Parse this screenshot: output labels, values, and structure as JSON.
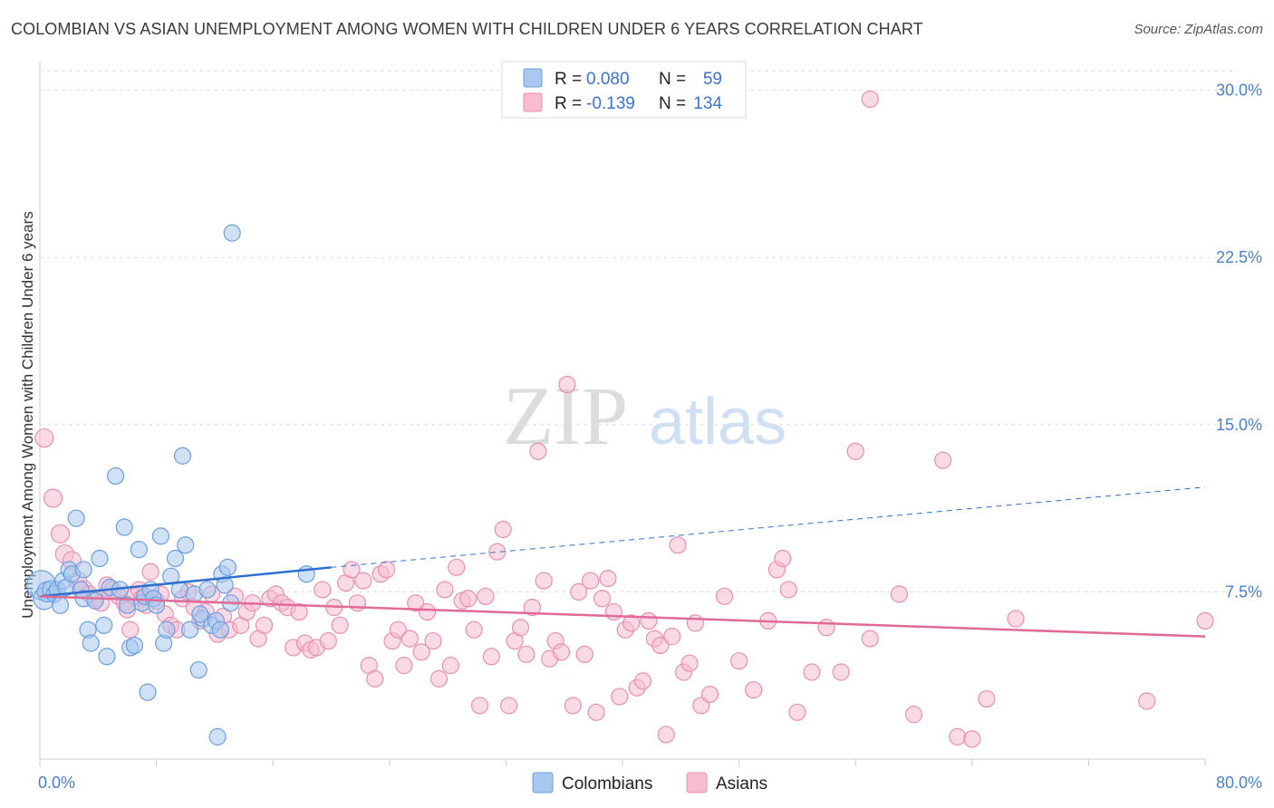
{
  "title": "COLOMBIAN VS ASIAN UNEMPLOYMENT AMONG WOMEN WITH CHILDREN UNDER 6 YEARS CORRELATION CHART",
  "source": "Source: ZipAtlas.com",
  "watermark": {
    "zip": "ZIP",
    "atlas": "atlas"
  },
  "colors": {
    "colombians_fill": "#a9c8ef",
    "colombians_stroke": "#6a9ee0",
    "colombians_line": "#2f6fd0",
    "asians_fill": "#f6bcd0",
    "asians_stroke": "#e98fb0",
    "asians_line": "#e06a98",
    "grid": "#dddddd",
    "tick_text": "#4a7fd0"
  },
  "legend": {
    "rows": [
      {
        "r_label": "R =",
        "r_value": "0.080",
        "n_label": "N =",
        "n_value": "59"
      },
      {
        "r_label": "R =",
        "r_value": "-0.139",
        "n_label": "N =",
        "n_value": "134"
      }
    ]
  },
  "chart_data": {
    "type": "scatter",
    "xlabel": "",
    "ylabel": "Unemployment Among Women with Children Under 6 years",
    "xlim": [
      0,
      80
    ],
    "ylim": [
      0,
      31
    ],
    "x_tick_labels": [
      "0.0%",
      "80.0%"
    ],
    "y_ticks": [
      7.5,
      15.0,
      22.5,
      30.0
    ],
    "y_tick_labels": [
      "7.5%",
      "15.0%",
      "22.5%",
      "30.0%"
    ],
    "grid": "horizontal dashed",
    "legend_position": "top-center",
    "series": [
      {
        "name": "Colombians",
        "trend": {
          "x0": 0,
          "y0": 7.3,
          "x1": 20,
          "y1": 8.6,
          "dash_to_x": 80,
          "dash_to_y": 12.2
        },
        "points": [
          [
            0.1,
            7.8,
            16
          ],
          [
            0.3,
            7.2,
            12
          ],
          [
            0.5,
            7.5,
            11
          ],
          [
            0.8,
            7.6,
            10
          ],
          [
            1.0,
            7.4,
            9
          ],
          [
            1.2,
            7.6,
            9
          ],
          [
            1.4,
            6.9,
            9
          ],
          [
            1.6,
            8.0,
            9
          ],
          [
            1.8,
            7.7,
            9
          ],
          [
            2.0,
            8.5,
            9
          ],
          [
            2.2,
            8.3,
            9
          ],
          [
            2.5,
            10.8,
            9
          ],
          [
            2.8,
            7.6,
            9
          ],
          [
            3.0,
            7.2,
            9
          ],
          [
            3.3,
            5.8,
            9
          ],
          [
            3.5,
            5.2,
            9
          ],
          [
            3.8,
            7.1,
            9
          ],
          [
            4.1,
            9.0,
            9
          ],
          [
            4.4,
            6.0,
            9
          ],
          [
            4.6,
            4.6,
            9
          ],
          [
            4.8,
            7.7,
            9
          ],
          [
            5.2,
            12.7,
            9
          ],
          [
            5.5,
            7.6,
            9
          ],
          [
            5.8,
            10.4,
            9
          ],
          [
            6.0,
            6.9,
            9
          ],
          [
            6.2,
            5.0,
            9
          ],
          [
            6.5,
            5.1,
            9
          ],
          [
            6.8,
            9.4,
            9
          ],
          [
            7.0,
            7.0,
            9
          ],
          [
            7.2,
            7.3,
            9
          ],
          [
            7.4,
            3.0,
            9
          ],
          [
            7.6,
            7.6,
            9
          ],
          [
            7.8,
            7.2,
            9
          ],
          [
            8.0,
            6.9,
            9
          ],
          [
            8.3,
            10.0,
            9
          ],
          [
            8.5,
            5.2,
            9
          ],
          [
            8.7,
            5.8,
            9
          ],
          [
            9.0,
            8.2,
            9
          ],
          [
            9.3,
            9.0,
            9
          ],
          [
            9.6,
            7.6,
            9
          ],
          [
            10.0,
            9.6,
            9
          ],
          [
            10.3,
            5.8,
            9
          ],
          [
            10.6,
            7.4,
            9
          ],
          [
            10.9,
            4.0,
            9
          ],
          [
            11.2,
            6.3,
            9
          ],
          [
            11.5,
            7.6,
            9
          ],
          [
            11.8,
            6.0,
            9
          ],
          [
            12.1,
            6.2,
            9
          ],
          [
            12.4,
            5.8,
            9
          ],
          [
            11.0,
            6.5,
            9
          ],
          [
            9.8,
            13.6,
            9
          ],
          [
            12.5,
            8.3,
            9
          ],
          [
            12.7,
            7.8,
            9
          ],
          [
            12.9,
            8.6,
            9
          ],
          [
            13.1,
            7.0,
            9
          ],
          [
            13.2,
            23.6,
            9
          ],
          [
            18.3,
            8.3,
            9
          ],
          [
            12.2,
            1.0,
            9
          ],
          [
            3.0,
            8.5,
            9
          ]
        ]
      },
      {
        "name": "Asians",
        "trend": {
          "x0": 0,
          "y0": 7.3,
          "x1": 80,
          "y1": 5.5
        },
        "points": [
          [
            0.3,
            14.4,
            10
          ],
          [
            0.9,
            11.7,
            10
          ],
          [
            1.4,
            10.1,
            10
          ],
          [
            1.7,
            9.2,
            10
          ],
          [
            2.2,
            8.9,
            10
          ],
          [
            2.6,
            8.0,
            10
          ],
          [
            3.0,
            7.6,
            10
          ],
          [
            3.4,
            7.4,
            9
          ],
          [
            3.8,
            7.2,
            9
          ],
          [
            4.2,
            7.0,
            9
          ],
          [
            4.6,
            7.8,
            9
          ],
          [
            5.0,
            7.6,
            9
          ],
          [
            5.4,
            7.3,
            9
          ],
          [
            5.8,
            7.0,
            9
          ],
          [
            6.0,
            6.7,
            9
          ],
          [
            6.2,
            5.8,
            9
          ],
          [
            6.5,
            7.3,
            9
          ],
          [
            6.8,
            7.6,
            9
          ],
          [
            7.0,
            7.2,
            9
          ],
          [
            7.3,
            6.9,
            9
          ],
          [
            7.6,
            8.4,
            9
          ],
          [
            8.0,
            7.1,
            9
          ],
          [
            8.3,
            7.4,
            9
          ],
          [
            8.6,
            6.5,
            9
          ],
          [
            9.0,
            6.0,
            9
          ],
          [
            9.4,
            5.8,
            9
          ],
          [
            9.8,
            7.2,
            9
          ],
          [
            10.2,
            7.5,
            9
          ],
          [
            10.6,
            6.8,
            9
          ],
          [
            11.0,
            6.2,
            9
          ],
          [
            11.4,
            6.6,
            9
          ],
          [
            11.8,
            7.4,
            9
          ],
          [
            12.2,
            5.6,
            9
          ],
          [
            12.6,
            6.4,
            9
          ],
          [
            13.0,
            5.8,
            9
          ],
          [
            13.4,
            7.3,
            9
          ],
          [
            13.8,
            6.0,
            9
          ],
          [
            14.2,
            6.6,
            9
          ],
          [
            14.6,
            7.0,
            9
          ],
          [
            15.0,
            5.4,
            9
          ],
          [
            15.4,
            6.0,
            9
          ],
          [
            15.8,
            7.2,
            9
          ],
          [
            16.2,
            7.4,
            9
          ],
          [
            16.6,
            7.0,
            9
          ],
          [
            17.0,
            6.8,
            9
          ],
          [
            17.4,
            5.0,
            9
          ],
          [
            17.8,
            6.6,
            9
          ],
          [
            18.2,
            5.2,
            9
          ],
          [
            18.6,
            4.9,
            9
          ],
          [
            19.0,
            5.0,
            9
          ],
          [
            19.4,
            7.6,
            9
          ],
          [
            19.8,
            5.3,
            9
          ],
          [
            20.2,
            6.8,
            9
          ],
          [
            20.6,
            6.0,
            9
          ],
          [
            21.0,
            7.9,
            9
          ],
          [
            21.4,
            8.5,
            9
          ],
          [
            21.8,
            7.0,
            9
          ],
          [
            22.2,
            8.0,
            9
          ],
          [
            22.6,
            4.2,
            9
          ],
          [
            23.0,
            3.6,
            9
          ],
          [
            23.4,
            8.3,
            9
          ],
          [
            23.8,
            8.5,
            9
          ],
          [
            24.2,
            5.3,
            9
          ],
          [
            24.6,
            5.8,
            9
          ],
          [
            25.0,
            4.2,
            9
          ],
          [
            25.4,
            5.4,
            9
          ],
          [
            25.8,
            7.0,
            9
          ],
          [
            26.2,
            4.8,
            9
          ],
          [
            26.6,
            6.6,
            9
          ],
          [
            27.0,
            5.3,
            9
          ],
          [
            27.4,
            3.6,
            9
          ],
          [
            27.8,
            7.6,
            9
          ],
          [
            28.2,
            4.2,
            9
          ],
          [
            28.6,
            8.6,
            9
          ],
          [
            29.0,
            7.1,
            9
          ],
          [
            29.4,
            7.2,
            9
          ],
          [
            29.8,
            5.8,
            9
          ],
          [
            30.2,
            2.4,
            9
          ],
          [
            30.6,
            7.3,
            9
          ],
          [
            31.0,
            4.6,
            9
          ],
          [
            31.4,
            9.3,
            9
          ],
          [
            31.8,
            10.3,
            9
          ],
          [
            32.2,
            2.4,
            9
          ],
          [
            32.6,
            5.3,
            9
          ],
          [
            33.0,
            5.9,
            9
          ],
          [
            33.4,
            4.7,
            9
          ],
          [
            33.8,
            6.8,
            9
          ],
          [
            34.2,
            13.8,
            9
          ],
          [
            34.6,
            8.0,
            9
          ],
          [
            35.0,
            4.5,
            9
          ],
          [
            35.4,
            5.3,
            9
          ],
          [
            35.8,
            4.8,
            9
          ],
          [
            36.2,
            16.8,
            9
          ],
          [
            36.6,
            2.4,
            9
          ],
          [
            37.0,
            7.5,
            9
          ],
          [
            37.4,
            4.7,
            9
          ],
          [
            37.8,
            8.0,
            9
          ],
          [
            38.2,
            2.1,
            9
          ],
          [
            38.6,
            7.2,
            9
          ],
          [
            39.0,
            8.1,
            9
          ],
          [
            39.4,
            6.6,
            9
          ],
          [
            39.8,
            2.8,
            9
          ],
          [
            40.2,
            5.8,
            9
          ],
          [
            40.6,
            6.1,
            9
          ],
          [
            41.0,
            3.2,
            9
          ],
          [
            41.4,
            3.5,
            9
          ],
          [
            41.8,
            6.2,
            9
          ],
          [
            42.2,
            5.4,
            9
          ],
          [
            42.6,
            5.1,
            9
          ],
          [
            43.0,
            1.1,
            9
          ],
          [
            43.4,
            5.5,
            9
          ],
          [
            43.8,
            9.6,
            9
          ],
          [
            44.2,
            3.9,
            9
          ],
          [
            44.6,
            4.3,
            9
          ],
          [
            45.0,
            6.1,
            9
          ],
          [
            45.4,
            2.4,
            9
          ],
          [
            46.0,
            2.9,
            9
          ],
          [
            47.0,
            7.3,
            9
          ],
          [
            48.0,
            4.4,
            9
          ],
          [
            49.0,
            3.1,
            9
          ],
          [
            50.0,
            6.2,
            9
          ],
          [
            50.6,
            8.5,
            9
          ],
          [
            51.0,
            9.0,
            9
          ],
          [
            51.4,
            7.6,
            9
          ],
          [
            52.0,
            2.1,
            9
          ],
          [
            53.0,
            3.9,
            9
          ],
          [
            54.0,
            5.9,
            9
          ],
          [
            55.0,
            3.9,
            9
          ],
          [
            56.0,
            13.8,
            9
          ],
          [
            57.0,
            5.4,
            9
          ],
          [
            59.0,
            7.4,
            9
          ],
          [
            60.0,
            2.0,
            9
          ],
          [
            62.0,
            13.4,
            9
          ],
          [
            63.0,
            1.0,
            9
          ],
          [
            64.0,
            0.9,
            9
          ],
          [
            65.0,
            2.7,
            9
          ],
          [
            67.0,
            6.3,
            9
          ],
          [
            76.0,
            2.6,
            9
          ],
          [
            80.0,
            6.2,
            9
          ],
          [
            57.0,
            29.6,
            9
          ]
        ]
      }
    ]
  },
  "bottom_legend": {
    "colombians": "Colombians",
    "asians": "Asians"
  }
}
